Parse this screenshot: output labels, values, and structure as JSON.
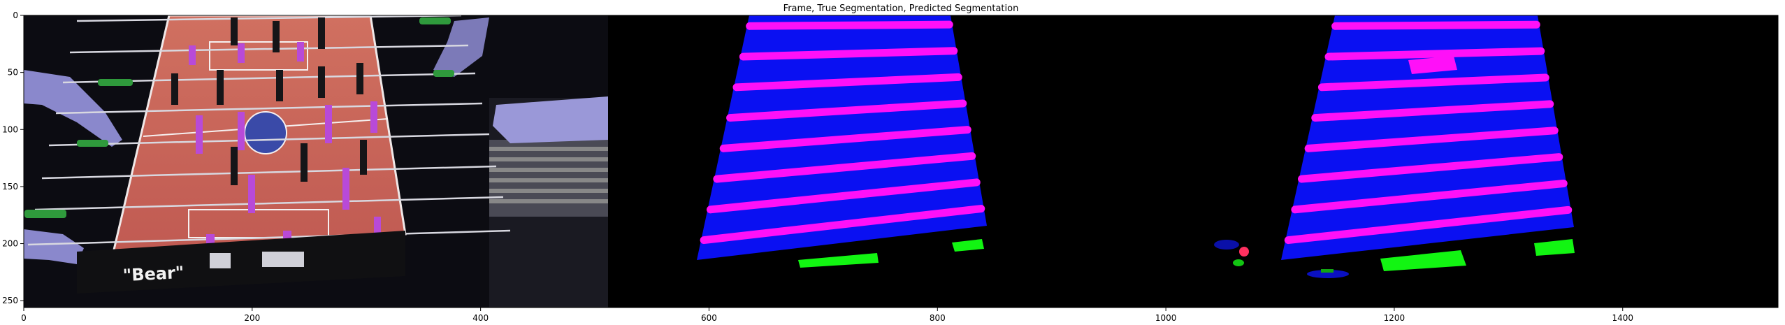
{
  "figure": {
    "title": "Frame, True Segmentation, Predicted Segmentation"
  },
  "chart_data": {
    "type": "image",
    "title": "Frame, True Segmentation, Predicted Segmentation",
    "xlabel": "",
    "ylabel": "",
    "xlim": [
      0,
      1536
    ],
    "ylim": [
      256,
      0
    ],
    "x_ticks": [
      "0",
      "200",
      "400",
      "600",
      "800",
      "1000",
      "1200",
      "1400"
    ],
    "y_ticks": [
      "0",
      "50",
      "100",
      "150",
      "200",
      "250"
    ],
    "x_tick_values": [
      0,
      200,
      400,
      600,
      800,
      1000,
      1200,
      1400
    ],
    "y_tick_values": [
      0,
      50,
      100,
      150,
      200,
      250
    ],
    "panels": [
      "Frame",
      "True Segmentation",
      "Predicted Segmentation"
    ],
    "frame_text": "\"Bear\"",
    "segmentation_colors": {
      "table": "#0a10f2",
      "rods": "#ff10f8",
      "goals": "#12f512",
      "background": "#000000"
    }
  }
}
